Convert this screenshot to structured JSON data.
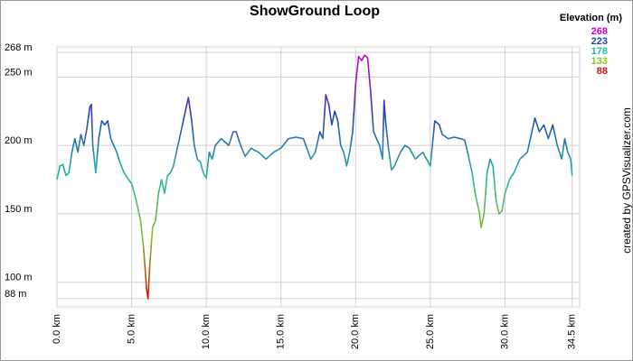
{
  "chart_data": {
    "type": "line",
    "title": "ShowGround Loop",
    "credit": "created by GPSVisualizer.com",
    "xlim": [
      0,
      35
    ],
    "ylim": [
      82,
      272
    ],
    "xticks": [
      {
        "value": 0,
        "label": "0.0 km"
      },
      {
        "value": 5,
        "label": "5.0 km"
      },
      {
        "value": 10,
        "label": "10.0 km"
      },
      {
        "value": 15,
        "label": "15.0 km"
      },
      {
        "value": 20,
        "label": "20.0 km"
      },
      {
        "value": 25,
        "label": "25.0 km"
      },
      {
        "value": 30,
        "label": "30.0 km"
      },
      {
        "value": 34.5,
        "label": "34.5 km"
      }
    ],
    "yticks": [
      {
        "value": 88,
        "label": "88 m"
      },
      {
        "value": 100,
        "label": "100 m"
      },
      {
        "value": 150,
        "label": "150 m"
      },
      {
        "value": 200,
        "label": "200 m"
      },
      {
        "value": 250,
        "label": "250 m"
      },
      {
        "value": 268,
        "label": "268 m"
      }
    ],
    "grid": true,
    "legend": {
      "title": "Elevation (m)",
      "levels": [
        {
          "value": 268,
          "color": "#cc00cc"
        },
        {
          "value": 223,
          "color": "#2a3fb0"
        },
        {
          "value": 178,
          "color": "#22b8a0"
        },
        {
          "value": 133,
          "color": "#88c020"
        },
        {
          "value": 88,
          "color": "#cc1010"
        }
      ]
    },
    "x": [
      0.0,
      0.2,
      0.4,
      0.6,
      0.8,
      1.0,
      1.2,
      1.4,
      1.6,
      1.8,
      2.0,
      2.2,
      2.3,
      2.4,
      2.6,
      2.8,
      3.0,
      3.2,
      3.4,
      3.6,
      3.8,
      4.0,
      4.2,
      4.5,
      4.8,
      5.0,
      5.3,
      5.6,
      5.8,
      6.0,
      6.1,
      6.2,
      6.4,
      6.6,
      6.8,
      7.0,
      7.2,
      7.4,
      7.6,
      7.8,
      8.0,
      8.3,
      8.6,
      8.8,
      9.0,
      9.2,
      9.4,
      9.6,
      9.8,
      10.0,
      10.2,
      10.4,
      10.6,
      11.0,
      11.5,
      11.8,
      12.0,
      12.3,
      12.6,
      13.0,
      13.5,
      14.0,
      14.5,
      15.0,
      15.5,
      16.0,
      16.5,
      17.0,
      17.3,
      17.6,
      17.8,
      18.0,
      18.2,
      18.4,
      18.6,
      18.8,
      19.0,
      19.2,
      19.4,
      19.6,
      19.8,
      20.0,
      20.2,
      20.4,
      20.6,
      20.8,
      21.0,
      21.2,
      21.4,
      21.6,
      21.8,
      21.9,
      22.0,
      22.2,
      22.4,
      22.6,
      23.0,
      23.3,
      23.6,
      24.0,
      24.5,
      25.0,
      25.3,
      25.6,
      25.8,
      26.2,
      26.6,
      27.0,
      27.3,
      27.5,
      27.8,
      28.0,
      28.3,
      28.4,
      28.6,
      28.8,
      29.0,
      29.2,
      29.4,
      29.6,
      29.8,
      30.0,
      30.3,
      30.6,
      31.0,
      31.5,
      31.8,
      32.0,
      32.3,
      32.6,
      32.9,
      33.2,
      33.5,
      33.8,
      34.0,
      34.2,
      34.4,
      34.5
    ],
    "values": [
      175,
      185,
      186,
      178,
      180,
      195,
      205,
      195,
      208,
      200,
      212,
      228,
      230,
      200,
      180,
      205,
      218,
      215,
      218,
      205,
      200,
      195,
      188,
      180,
      175,
      172,
      160,
      145,
      125,
      95,
      88,
      110,
      140,
      145,
      165,
      175,
      165,
      178,
      180,
      185,
      195,
      210,
      225,
      235,
      220,
      200,
      190,
      188,
      180,
      176,
      195,
      190,
      200,
      205,
      200,
      210,
      210,
      200,
      192,
      198,
      195,
      190,
      195,
      198,
      205,
      206,
      205,
      190,
      195,
      210,
      205,
      237,
      230,
      215,
      225,
      218,
      200,
      195,
      185,
      195,
      210,
      245,
      265,
      262,
      266,
      264,
      240,
      210,
      205,
      200,
      190,
      233,
      218,
      198,
      182,
      185,
      195,
      200,
      198,
      190,
      195,
      185,
      218,
      215,
      208,
      205,
      206,
      205,
      204,
      195,
      180,
      165,
      150,
      140,
      150,
      180,
      190,
      185,
      160,
      150,
      152,
      165,
      175,
      180,
      190,
      195,
      210,
      220,
      210,
      215,
      205,
      215,
      200,
      190,
      205,
      195,
      190,
      178
    ]
  }
}
